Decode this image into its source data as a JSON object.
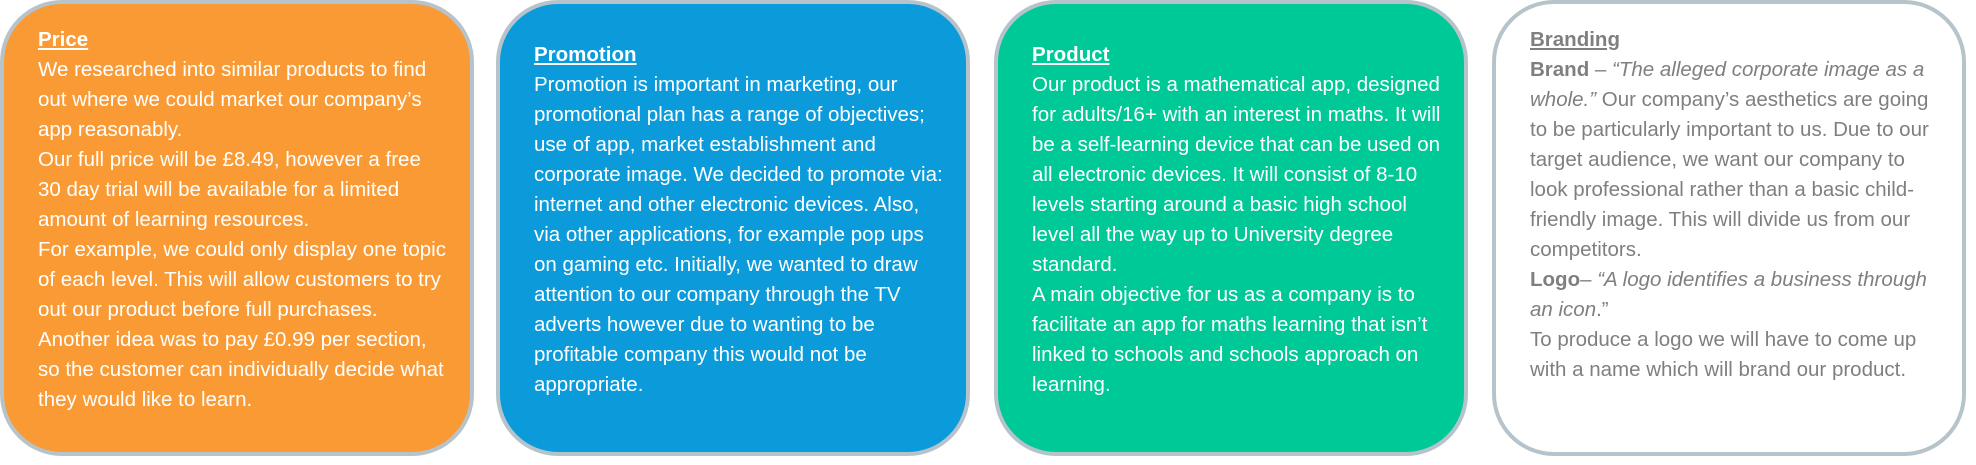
{
  "price": {
    "title": "Price",
    "p1": "We researched into similar products to find out where we could market our company’s app reasonably.",
    "p2": "Our full price will be £8.49, however a free 30 day trial will be available for a limited amount of learning resources.",
    "p3": "For example, we could only display one topic of each level. This will allow customers to try out our product before full purchases. Another idea was to pay £0.99 per section, so the customer can individually decide what they would like to learn."
  },
  "promotion": {
    "title": "Promotion",
    "p1": "Promotion is important in marketing, our promotional plan has a range of objectives; use of app, market establishment and corporate image. We decided to promote via: internet and other electronic devices. Also, via other applications, for example pop ups on gaming etc. Initially, we wanted to draw attention to our company through the TV adverts however due to wanting to be profitable company this would not be appropriate."
  },
  "product": {
    "title": "Product",
    "p1": "Our product is a mathematical app, designed for adults/16+ with an interest in maths. It will be a self-learning device that can be used on all electronic devices. It will consist of 8-10 levels starting around a basic high school level all the way up to University degree standard.",
    "p2": "A main objective for us as a company is to facilitate an app for maths learning that isn’t linked to schools and schools approach on learning."
  },
  "branding": {
    "title": "Branding",
    "brand_label": "Brand",
    "brand_dash": " – ",
    "brand_quote": "“The alleged corporate image as a whole.”",
    "brand_text": " Our company’s aesthetics are going to be particularly important to us. Due to our target audience, we want our company to look professional rather than a basic child-friendly image. This will divide us from our competitors.",
    "logo_label": "Logo",
    "logo_dash": "– ",
    "logo_quote": "“A logo identifies a business through an icon",
    "logo_quote_end": ".”",
    "logo_text": "To produce a logo we will have to come up with a name which will brand our product."
  },
  "colors": {
    "price_bg": "#fa9a34",
    "promotion_bg": "#0b9bdb",
    "product_bg": "#00c998",
    "branding_bg": "#ffffff",
    "border": "#b7c3ca",
    "branding_text": "#7f7f7f"
  }
}
